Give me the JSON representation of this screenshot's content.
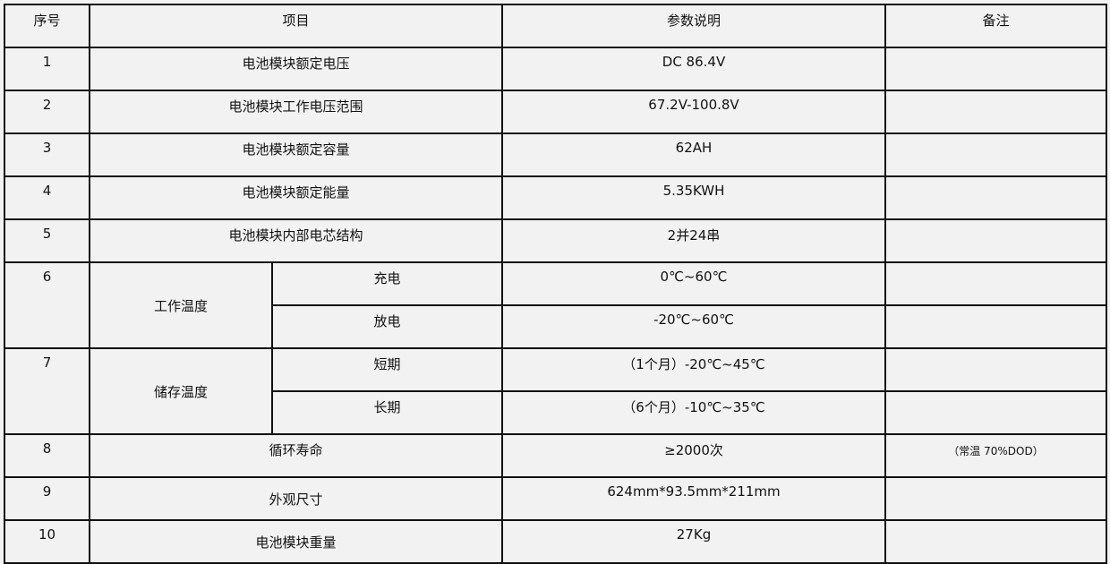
{
  "header": {
    "no": "序号",
    "item": "项目",
    "param": "参数说明",
    "note": "备注"
  },
  "rows": [
    {
      "no": "1",
      "item": "电池模块额定电压",
      "param": "DC 86.4V",
      "note": ""
    },
    {
      "no": "2",
      "item": "电池模块工作电压范围",
      "param": "67.2V-100.8V",
      "note": ""
    },
    {
      "no": "3",
      "item": "电池模块额定容量",
      "param": "62AH",
      "note": ""
    },
    {
      "no": "4",
      "item": "电池模块额定能量",
      "param": "5.35KWH",
      "note": ""
    },
    {
      "no": "5",
      "item": "电池模块内部电芯结构",
      "param": "2并24串",
      "note": ""
    }
  ],
  "temp_rows": [
    {
      "no": "6",
      "item": "工作温度",
      "sub": [
        {
          "label": "充电",
          "param": "0℃~60℃"
        },
        {
          "label": "放电",
          "param": "-20℃~60℃"
        }
      ]
    },
    {
      "no": "7",
      "item": "储存温度",
      "sub": [
        {
          "label": "短期",
          "param": "（1个月）-20℃~45℃"
        },
        {
          "label": "长期",
          "param": "（6个月）-10℃~35℃"
        }
      ]
    }
  ],
  "tail_rows": [
    {
      "no": "8",
      "item": "循环寿命",
      "param": "≥2000次",
      "note": "（常温  70%DOD）"
    },
    {
      "no": "9",
      "item": "外观尺寸",
      "param": "624mm*93.5mm*211mm",
      "note": ""
    },
    {
      "no": "10",
      "item": "电池模块重量",
      "param": "27Kg",
      "note": ""
    }
  ]
}
